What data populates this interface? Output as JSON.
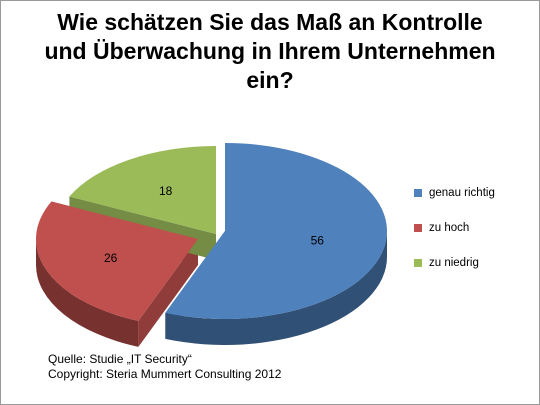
{
  "chart_data": {
    "type": "pie",
    "title_lines": [
      "Wie schätzen Sie das Maß an Kontrolle",
      "und Überwachung in Ihrem Unternehmen",
      "ein?"
    ],
    "categories": [
      "genau richtig",
      "zu hoch",
      "zu niedrig"
    ],
    "values": [
      56,
      26,
      18
    ],
    "colors": [
      "#4f81bd",
      "#c0504d",
      "#9bbb59"
    ],
    "legend_position": "right"
  },
  "footer": {
    "source": "Quelle: Studie „IT Security“",
    "copyright": "Copyright: Steria Mummert Consulting 2012"
  }
}
